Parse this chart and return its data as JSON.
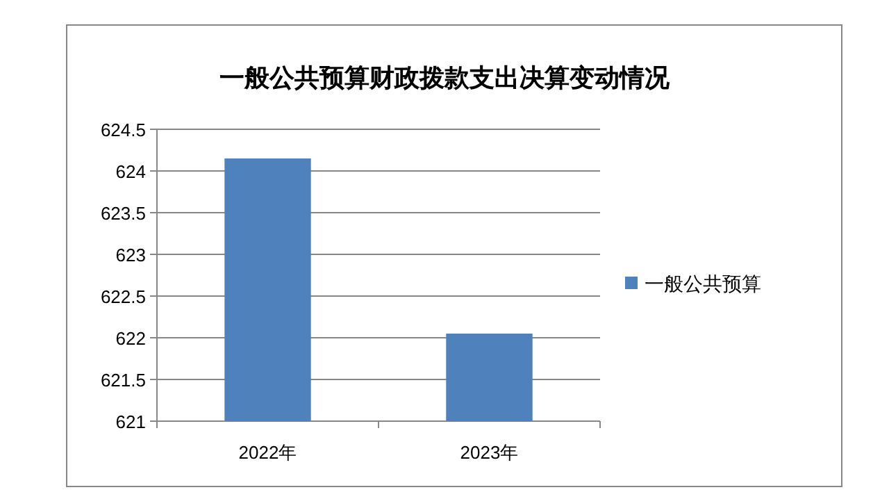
{
  "chart_data": {
    "type": "bar",
    "title": "一般公共预算财政拨款支出决算变动情况",
    "categories": [
      "2022年",
      "2023年"
    ],
    "series": [
      {
        "name": "一般公共预算",
        "color": "#4f81bd",
        "values": [
          624.15,
          622.05
        ]
      }
    ],
    "ylim": [
      621,
      624.5
    ],
    "yticks": [
      621,
      621.5,
      622,
      622.5,
      623,
      623.5,
      624,
      624.5
    ],
    "grid": "y",
    "legend": "right"
  }
}
